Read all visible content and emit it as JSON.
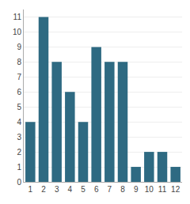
{
  "chart_data": {
    "type": "bar",
    "categories": [
      "1",
      "2",
      "3",
      "4",
      "5",
      "6",
      "7",
      "8",
      "9",
      "10",
      "11",
      "12"
    ],
    "values": [
      4,
      11,
      8,
      6,
      4,
      9,
      8,
      8,
      1,
      2,
      2,
      1
    ],
    "color": "#2e6a82",
    "ylim": [
      0,
      11.5
    ],
    "yticks": [
      0,
      1,
      2,
      3,
      4,
      5,
      6,
      7,
      8,
      9,
      10,
      11
    ],
    "grid": true
  }
}
